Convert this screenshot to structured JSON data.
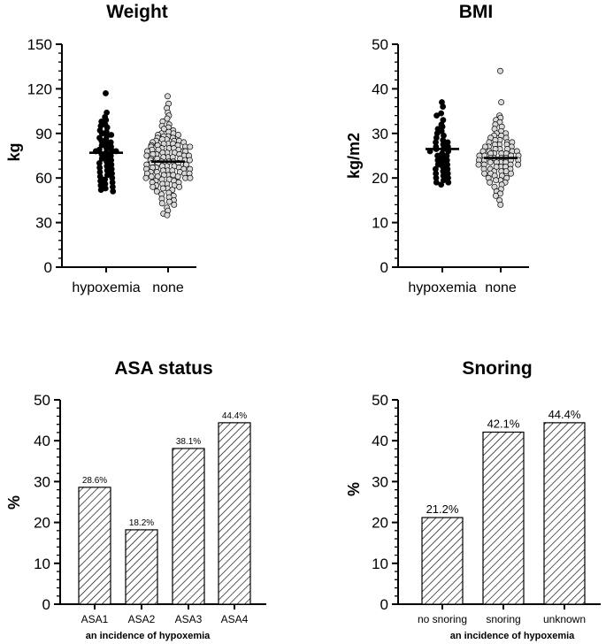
{
  "chart_data": [
    {
      "type": "scatter",
      "title": "Weight",
      "ylabel": "kg",
      "ylim": [
        0,
        150
      ],
      "yticks": [
        "0",
        "30",
        "60",
        "90",
        "120",
        "150"
      ],
      "categories": [
        "hypoxemia",
        "none"
      ],
      "series": [
        {
          "name": "hypoxemia",
          "fill": "#000000",
          "center": 77,
          "values": [
            117,
            104,
            101,
            99,
            98,
            96,
            95,
            94,
            92,
            91,
            90,
            89,
            88,
            87,
            86,
            85,
            84,
            83,
            82,
            81,
            80,
            79,
            79,
            78,
            78,
            77,
            76,
            75,
            74,
            73,
            72,
            71,
            70,
            69,
            68,
            67,
            66,
            65,
            64,
            63,
            62,
            61,
            60,
            59,
            58,
            57,
            56,
            55,
            54,
            53,
            52,
            51
          ]
        },
        {
          "name": "none",
          "fill": "#d9d9d9",
          "center": 71,
          "values": [
            115,
            110,
            107,
            104,
            102,
            100,
            98,
            96,
            95,
            94,
            93,
            92,
            91,
            90,
            90,
            89,
            89,
            88,
            88,
            87,
            87,
            86,
            86,
            85,
            85,
            85,
            84,
            84,
            83,
            83,
            83,
            82,
            82,
            82,
            81,
            81,
            81,
            80,
            80,
            80,
            79,
            79,
            79,
            78,
            78,
            78,
            77,
            77,
            77,
            76,
            76,
            76,
            75,
            75,
            75,
            74,
            74,
            74,
            73,
            73,
            73,
            72,
            72,
            72,
            71,
            71,
            71,
            70,
            70,
            70,
            69,
            69,
            69,
            68,
            68,
            68,
            67,
            67,
            67,
            66,
            66,
            66,
            65,
            65,
            65,
            64,
            64,
            64,
            63,
            63,
            63,
            62,
            62,
            62,
            61,
            61,
            61,
            60,
            60,
            60,
            59,
            59,
            58,
            58,
            57,
            57,
            56,
            56,
            55,
            55,
            54,
            54,
            53,
            53,
            52,
            51,
            50,
            49,
            48,
            47,
            46,
            45,
            44,
            43,
            42,
            40,
            38,
            36,
            35
          ]
        }
      ]
    },
    {
      "type": "scatter",
      "title": "BMI",
      "ylabel": "kg/m2",
      "ylim": [
        0,
        50
      ],
      "yticks": [
        "0",
        "10",
        "20",
        "30",
        "40",
        "50"
      ],
      "categories": [
        "hypoxemia",
        "none"
      ],
      "series": [
        {
          "name": "hypoxemia",
          "fill": "#000000",
          "center": 26.5,
          "values": [
            37,
            36,
            34.5,
            34,
            33,
            32,
            31.5,
            31,
            30.5,
            30,
            29.5,
            29,
            28.5,
            28,
            28,
            27.5,
            27,
            27,
            26.5,
            26.5,
            26,
            26,
            25.5,
            25,
            25,
            24.5,
            24,
            24,
            23.5,
            23,
            23,
            22.5,
            22,
            22,
            21.5,
            21,
            21,
            20.5,
            20,
            20,
            19.5,
            19,
            19,
            18.5
          ]
        },
        {
          "name": "none",
          "fill": "#d9d9d9",
          "center": 24.5,
          "values": [
            44,
            37,
            34,
            33.5,
            33,
            32.5,
            32,
            31.5,
            31,
            30.5,
            30,
            30,
            29.5,
            29.5,
            29,
            29,
            28.5,
            28.5,
            28,
            28,
            28,
            27.5,
            27.5,
            27.5,
            27,
            27,
            27,
            26.5,
            26.5,
            26.5,
            26,
            26,
            26,
            26,
            25.5,
            25.5,
            25.5,
            25.5,
            25,
            25,
            25,
            25,
            24.5,
            24.5,
            24.5,
            24.5,
            24,
            24,
            24,
            24,
            23.5,
            23.5,
            23.5,
            23.5,
            23,
            23,
            23,
            23,
            22.5,
            22.5,
            22.5,
            22,
            22,
            22,
            21.5,
            21.5,
            21.5,
            21,
            21,
            21,
            20.5,
            20.5,
            20,
            20,
            19.5,
            19.5,
            19,
            19,
            18.5,
            18,
            17.5,
            17,
            16.5,
            16,
            15,
            14
          ]
        }
      ]
    },
    {
      "type": "bar",
      "title": "ASA status",
      "ylabel": "%",
      "xlabel": "an incidence of hypoxemia",
      "ylim": [
        0,
        50
      ],
      "yticks": [
        "0",
        "10",
        "20",
        "30",
        "40",
        "50"
      ],
      "categories": [
        "ASA1",
        "ASA2",
        "ASA3",
        "ASA4"
      ],
      "values": [
        28.6,
        18.2,
        38.1,
        44.4
      ],
      "data_labels": [
        "28.6%",
        "18.2%",
        "38.1%",
        "44.4%"
      ]
    },
    {
      "type": "bar",
      "title": "Snoring",
      "ylabel": "%",
      "xlabel": "an incidence of hypoxemia",
      "ylim": [
        0,
        50
      ],
      "yticks": [
        "0",
        "10",
        "20",
        "30",
        "40",
        "50"
      ],
      "categories": [
        "no snoring",
        "snoring",
        "unknown"
      ],
      "values": [
        21.2,
        42.1,
        44.4
      ],
      "data_labels": [
        "21.2%",
        "42.1%",
        "44.4%"
      ]
    }
  ]
}
